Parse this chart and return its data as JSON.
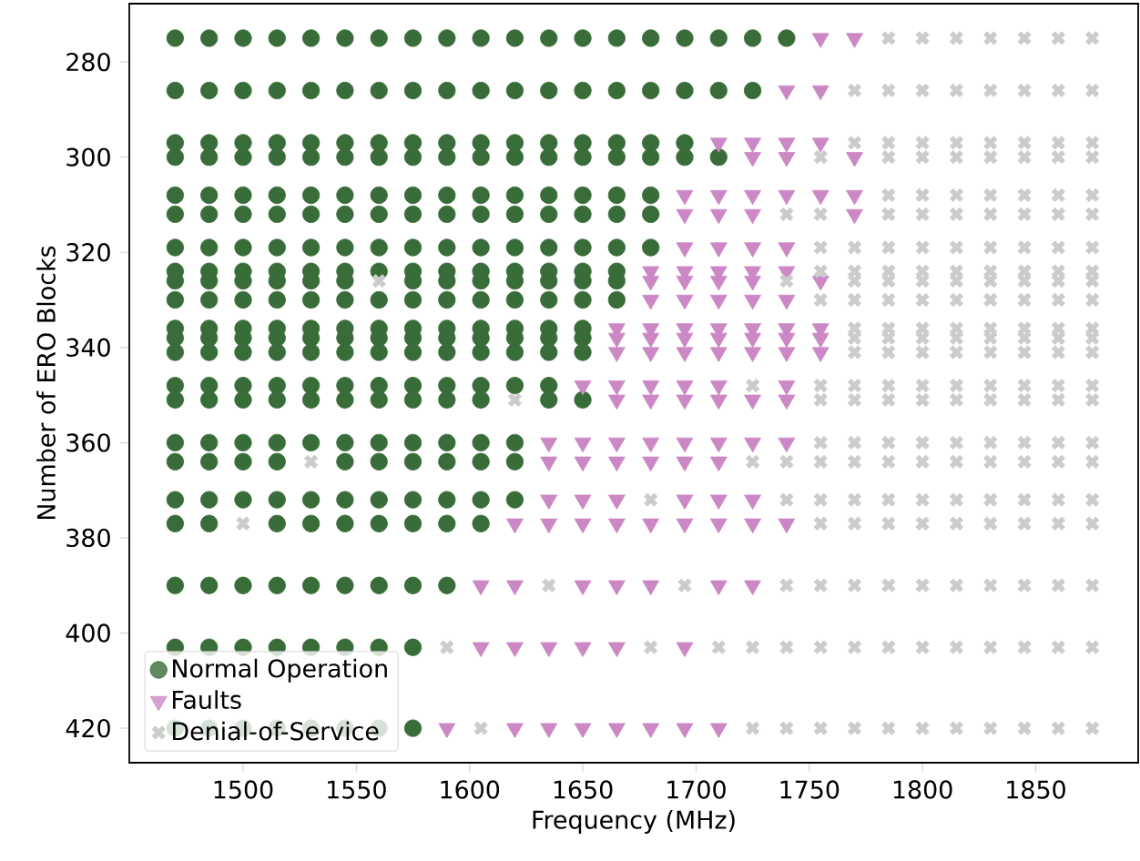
{
  "chart_data": {
    "type": "scatter",
    "xlabel": "Frequency (MHz)",
    "ylabel": "Number of ERO Blocks",
    "xlim": [
      1449.75,
      1895.25
    ],
    "ylim": [
      427.25,
      267.75
    ],
    "xticks": [
      1500,
      1550,
      1600,
      1650,
      1700,
      1750,
      1800,
      1850
    ],
    "yticks": [
      280,
      300,
      320,
      340,
      360,
      380,
      400,
      420
    ],
    "legend": "bottom left",
    "series": [
      {
        "name": "Normal Operation",
        "color": "#386c38",
        "marker": "circle",
        "x": [
          1470,
          1485,
          1500,
          1515,
          1530,
          1545,
          1560,
          1575,
          1590,
          1605,
          1620,
          1635,
          1650,
          1665,
          1680,
          1695,
          1710,
          1725,
          1740,
          1470,
          1485,
          1500,
          1515,
          1530,
          1545,
          1560,
          1575,
          1590,
          1605,
          1620,
          1635,
          1650,
          1665,
          1680,
          1695,
          1710,
          1725,
          1470,
          1485,
          1500,
          1515,
          1530,
          1545,
          1560,
          1575,
          1590,
          1605,
          1620,
          1635,
          1650,
          1665,
          1680,
          1695,
          1470,
          1485,
          1500,
          1515,
          1530,
          1545,
          1560,
          1575,
          1590,
          1605,
          1620,
          1635,
          1650,
          1665,
          1680,
          1695,
          1710,
          1470,
          1485,
          1500,
          1515,
          1530,
          1545,
          1560,
          1575,
          1590,
          1605,
          1620,
          1635,
          1650,
          1665,
          1680,
          1470,
          1485,
          1500,
          1515,
          1530,
          1545,
          1560,
          1575,
          1590,
          1605,
          1620,
          1635,
          1650,
          1665,
          1680,
          1470,
          1485,
          1500,
          1515,
          1530,
          1545,
          1560,
          1575,
          1590,
          1605,
          1620,
          1635,
          1650,
          1665,
          1680,
          1470,
          1485,
          1500,
          1515,
          1530,
          1545,
          1560,
          1575,
          1590,
          1605,
          1620,
          1635,
          1650,
          1665,
          1470,
          1485,
          1500,
          1515,
          1530,
          1545,
          1575,
          1590,
          1605,
          1620,
          1635,
          1650,
          1665,
          1470,
          1485,
          1500,
          1515,
          1530,
          1545,
          1560,
          1575,
          1590,
          1605,
          1620,
          1635,
          1650,
          1665,
          1470,
          1485,
          1500,
          1515,
          1530,
          1545,
          1560,
          1575,
          1590,
          1605,
          1620,
          1635,
          1650,
          1470,
          1485,
          1500,
          1515,
          1530,
          1545,
          1560,
          1575,
          1590,
          1605,
          1620,
          1635,
          1650,
          1470,
          1485,
          1500,
          1515,
          1530,
          1545,
          1560,
          1575,
          1590,
          1605,
          1620,
          1635,
          1650,
          1470,
          1485,
          1500,
          1515,
          1530,
          1545,
          1560,
          1575,
          1590,
          1605,
          1620,
          1635,
          1470,
          1485,
          1500,
          1515,
          1530,
          1545,
          1560,
          1575,
          1590,
          1605,
          1635,
          1650,
          1470,
          1485,
          1500,
          1515,
          1530,
          1545,
          1560,
          1575,
          1590,
          1605,
          1620,
          1470,
          1485,
          1500,
          1515,
          1545,
          1560,
          1575,
          1590,
          1605,
          1620,
          1470,
          1485,
          1500,
          1515,
          1530,
          1545,
          1560,
          1575,
          1590,
          1605,
          1620,
          1470,
          1485,
          1515,
          1530,
          1545,
          1560,
          1575,
          1590,
          1605,
          1470,
          1485,
          1500,
          1515,
          1530,
          1545,
          1560,
          1575,
          1590,
          1470,
          1485,
          1500,
          1515,
          1530,
          1545,
          1560,
          1575,
          1470,
          1485,
          1500,
          1515,
          1530,
          1545,
          1560,
          1575
        ],
        "values": [
          275,
          275,
          275,
          275,
          275,
          275,
          275,
          275,
          275,
          275,
          275,
          275,
          275,
          275,
          275,
          275,
          275,
          275,
          275,
          286,
          286,
          286,
          286,
          286,
          286,
          286,
          286,
          286,
          286,
          286,
          286,
          286,
          286,
          286,
          286,
          286,
          286,
          297,
          297,
          297,
          297,
          297,
          297,
          297,
          297,
          297,
          297,
          297,
          297,
          297,
          297,
          297,
          297,
          300,
          300,
          300,
          300,
          300,
          300,
          300,
          300,
          300,
          300,
          300,
          300,
          300,
          300,
          300,
          300,
          300,
          308,
          308,
          308,
          308,
          308,
          308,
          308,
          308,
          308,
          308,
          308,
          308,
          308,
          308,
          308,
          312,
          312,
          312,
          312,
          312,
          312,
          312,
          312,
          312,
          312,
          312,
          312,
          312,
          312,
          312,
          319,
          319,
          319,
          319,
          319,
          319,
          319,
          319,
          319,
          319,
          319,
          319,
          319,
          319,
          319,
          324,
          324,
          324,
          324,
          324,
          324,
          324,
          324,
          324,
          324,
          324,
          324,
          324,
          324,
          326,
          326,
          326,
          326,
          326,
          326,
          326,
          326,
          326,
          326,
          326,
          326,
          326,
          330,
          330,
          330,
          330,
          330,
          330,
          330,
          330,
          330,
          330,
          330,
          330,
          330,
          330,
          336,
          336,
          336,
          336,
          336,
          336,
          336,
          336,
          336,
          336,
          336,
          336,
          336,
          338,
          338,
          338,
          338,
          338,
          338,
          338,
          338,
          338,
          338,
          338,
          338,
          338,
          341,
          341,
          341,
          341,
          341,
          341,
          341,
          341,
          341,
          341,
          341,
          341,
          341,
          348,
          348,
          348,
          348,
          348,
          348,
          348,
          348,
          348,
          348,
          348,
          348,
          351,
          351,
          351,
          351,
          351,
          351,
          351,
          351,
          351,
          351,
          351,
          351,
          360,
          360,
          360,
          360,
          360,
          360,
          360,
          360,
          360,
          360,
          360,
          364,
          364,
          364,
          364,
          364,
          364,
          364,
          364,
          364,
          364,
          372,
          372,
          372,
          372,
          372,
          372,
          372,
          372,
          372,
          372,
          372,
          377,
          377,
          377,
          377,
          377,
          377,
          377,
          377,
          377,
          390,
          390,
          390,
          390,
          390,
          390,
          390,
          390,
          390,
          403,
          403,
          403,
          403,
          403,
          403,
          403,
          403,
          420,
          420,
          420,
          420,
          420,
          420,
          420,
          420
        ]
      },
      {
        "name": "Faults",
        "color": "#cc88c4",
        "marker": "triangle",
        "x": [
          1755,
          1770,
          1740,
          1755,
          1710,
          1725,
          1740,
          1755,
          1725,
          1740,
          1770,
          1695,
          1710,
          1725,
          1740,
          1755,
          1770,
          1695,
          1710,
          1725,
          1770,
          1695,
          1710,
          1725,
          1740,
          1680,
          1695,
          1710,
          1725,
          1740,
          1680,
          1695,
          1710,
          1725,
          1755,
          1680,
          1695,
          1710,
          1725,
          1740,
          1665,
          1680,
          1695,
          1710,
          1725,
          1740,
          1755,
          1665,
          1680,
          1695,
          1710,
          1725,
          1740,
          1755,
          1665,
          1680,
          1695,
          1710,
          1725,
          1740,
          1755,
          1650,
          1665,
          1680,
          1695,
          1710,
          1740,
          1665,
          1680,
          1695,
          1710,
          1725,
          1740,
          1635,
          1650,
          1665,
          1680,
          1695,
          1710,
          1725,
          1740,
          1635,
          1650,
          1665,
          1680,
          1695,
          1710,
          1635,
          1650,
          1665,
          1695,
          1710,
          1725,
          1620,
          1635,
          1650,
          1665,
          1680,
          1695,
          1710,
          1725,
          1740,
          1605,
          1620,
          1650,
          1665,
          1680,
          1710,
          1725,
          1605,
          1620,
          1635,
          1650,
          1665,
          1695,
          1590,
          1620,
          1635,
          1650,
          1665,
          1680,
          1695,
          1710
        ],
        "values": [
          275,
          275,
          286,
          286,
          297,
          297,
          297,
          297,
          300,
          300,
          300,
          308,
          308,
          308,
          308,
          308,
          308,
          312,
          312,
          312,
          312,
          319,
          319,
          319,
          319,
          324,
          324,
          324,
          324,
          324,
          326,
          326,
          326,
          326,
          326,
          330,
          330,
          330,
          330,
          330,
          336,
          336,
          336,
          336,
          336,
          336,
          336,
          338,
          338,
          338,
          338,
          338,
          338,
          338,
          341,
          341,
          341,
          341,
          341,
          341,
          341,
          348,
          348,
          348,
          348,
          348,
          348,
          351,
          351,
          351,
          351,
          351,
          351,
          360,
          360,
          360,
          360,
          360,
          360,
          360,
          360,
          364,
          364,
          364,
          364,
          364,
          364,
          372,
          372,
          372,
          372,
          372,
          372,
          377,
          377,
          377,
          377,
          377,
          377,
          377,
          377,
          377,
          390,
          390,
          390,
          390,
          390,
          390,
          390,
          403,
          403,
          403,
          403,
          403,
          403,
          420,
          420,
          420,
          420,
          420,
          420,
          420,
          420
        ]
      },
      {
        "name": "Denial-of-Service",
        "color": "#cccccc",
        "marker": "cross",
        "x": [
          1785,
          1800,
          1815,
          1830,
          1845,
          1860,
          1875,
          1770,
          1785,
          1800,
          1815,
          1830,
          1845,
          1860,
          1875,
          1770,
          1785,
          1800,
          1815,
          1830,
          1845,
          1860,
          1875,
          1755,
          1785,
          1800,
          1815,
          1830,
          1845,
          1860,
          1875,
          1785,
          1800,
          1815,
          1830,
          1845,
          1860,
          1875,
          1740,
          1755,
          1785,
          1800,
          1815,
          1830,
          1845,
          1860,
          1875,
          1755,
          1770,
          1785,
          1800,
          1815,
          1830,
          1845,
          1860,
          1875,
          1755,
          1770,
          1785,
          1800,
          1815,
          1830,
          1845,
          1860,
          1875,
          1560,
          1740,
          1770,
          1785,
          1800,
          1815,
          1830,
          1845,
          1860,
          1875,
          1755,
          1770,
          1785,
          1800,
          1815,
          1830,
          1845,
          1860,
          1875,
          1770,
          1785,
          1800,
          1815,
          1830,
          1845,
          1860,
          1875,
          1770,
          1785,
          1800,
          1815,
          1830,
          1845,
          1860,
          1875,
          1770,
          1785,
          1800,
          1815,
          1830,
          1845,
          1860,
          1875,
          1725,
          1755,
          1770,
          1785,
          1800,
          1815,
          1830,
          1845,
          1860,
          1875,
          1620,
          1755,
          1770,
          1785,
          1800,
          1815,
          1830,
          1845,
          1860,
          1875,
          1755,
          1770,
          1785,
          1800,
          1815,
          1830,
          1845,
          1860,
          1875,
          1530,
          1725,
          1740,
          1755,
          1770,
          1785,
          1800,
          1815,
          1830,
          1845,
          1860,
          1875,
          1680,
          1740,
          1755,
          1770,
          1785,
          1800,
          1815,
          1830,
          1845,
          1860,
          1875,
          1500,
          1755,
          1770,
          1785,
          1800,
          1815,
          1830,
          1845,
          1860,
          1875,
          1635,
          1695,
          1740,
          1755,
          1770,
          1785,
          1800,
          1815,
          1830,
          1845,
          1860,
          1875,
          1590,
          1680,
          1710,
          1725,
          1740,
          1755,
          1770,
          1785,
          1800,
          1815,
          1830,
          1845,
          1860,
          1875,
          1605,
          1725,
          1740,
          1755,
          1770,
          1785,
          1800,
          1815,
          1830,
          1845,
          1860,
          1875
        ],
        "values": [
          275,
          275,
          275,
          275,
          275,
          275,
          275,
          286,
          286,
          286,
          286,
          286,
          286,
          286,
          286,
          297,
          297,
          297,
          297,
          297,
          297,
          297,
          297,
          300,
          300,
          300,
          300,
          300,
          300,
          300,
          300,
          308,
          308,
          308,
          308,
          308,
          308,
          308,
          312,
          312,
          312,
          312,
          312,
          312,
          312,
          312,
          312,
          319,
          319,
          319,
          319,
          319,
          319,
          319,
          319,
          319,
          324,
          324,
          324,
          324,
          324,
          324,
          324,
          324,
          324,
          326,
          326,
          326,
          326,
          326,
          326,
          326,
          326,
          326,
          326,
          330,
          330,
          330,
          330,
          330,
          330,
          330,
          330,
          330,
          336,
          336,
          336,
          336,
          336,
          336,
          336,
          336,
          338,
          338,
          338,
          338,
          338,
          338,
          338,
          338,
          341,
          341,
          341,
          341,
          341,
          341,
          341,
          341,
          348,
          348,
          348,
          348,
          348,
          348,
          348,
          348,
          348,
          348,
          351,
          351,
          351,
          351,
          351,
          351,
          351,
          351,
          351,
          351,
          360,
          360,
          360,
          360,
          360,
          360,
          360,
          360,
          360,
          364,
          364,
          364,
          364,
          364,
          364,
          364,
          364,
          364,
          364,
          364,
          364,
          372,
          372,
          372,
          372,
          372,
          372,
          372,
          372,
          372,
          372,
          372,
          377,
          377,
          377,
          377,
          377,
          377,
          377,
          377,
          377,
          377,
          390,
          390,
          390,
          390,
          390,
          390,
          390,
          390,
          390,
          390,
          390,
          390,
          403,
          403,
          403,
          403,
          403,
          403,
          403,
          403,
          403,
          403,
          403,
          403,
          403,
          403,
          420,
          420,
          420,
          420,
          420,
          420,
          420,
          420,
          420,
          420,
          420,
          420
        ]
      }
    ]
  }
}
